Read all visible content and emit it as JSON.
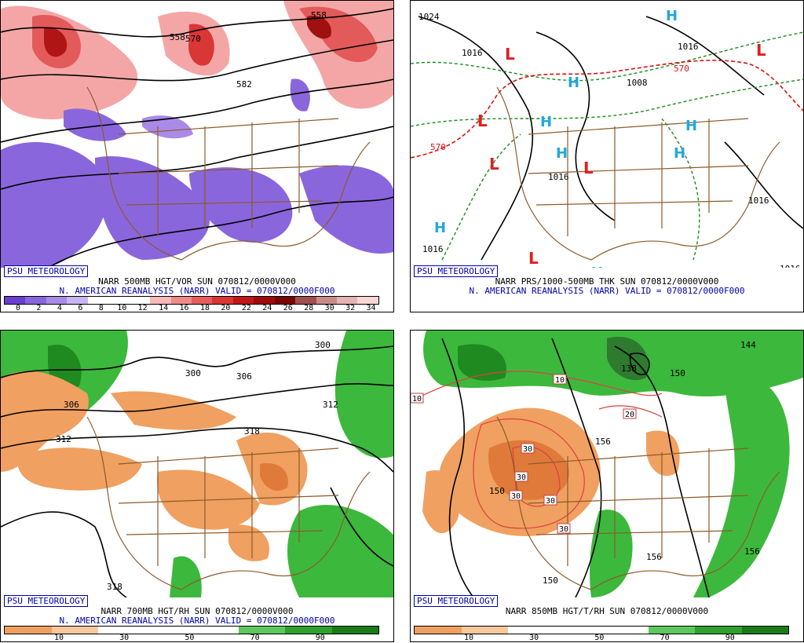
{
  "panels": [
    {
      "id": "vor",
      "badge": "PSU METEOROLOGY",
      "line1": "NARR 500MB HGT/VOR SUN 070812/0000V000",
      "line2": "N. AMERICAN REANALYSIS (NARR) VALID = 070812/0000F000",
      "colorbar": {
        "ticks": [
          "0",
          "2",
          "4",
          "6",
          "8",
          "10",
          "12",
          "14",
          "16",
          "18",
          "20",
          "22",
          "24",
          "26",
          "28",
          "30",
          "32",
          "34"
        ],
        "colors": [
          "#6a3fd0",
          "#8a66dc",
          "#a98ae6",
          "#c8b4f0",
          "#ffffff",
          "#ffffff",
          "#ffffff",
          "#f7b9b9",
          "#f08a8a",
          "#e85d5d",
          "#d93636",
          "#c01818",
          "#9e0b0b",
          "#7a0505",
          "#a05050",
          "#c98a8a",
          "#e6b4b4",
          "#f7d6d6"
        ]
      },
      "contour_labels": [
        "558",
        "570",
        "582",
        "552",
        "558"
      ]
    },
    {
      "id": "prs",
      "badge": "PSU METEOROLOGY",
      "line1": "NARR PRS/1000-500MB THK SUN 070812/0000V000",
      "line2": "N. AMERICAN REANALYSIS (NARR) VALID = 070812/0000F000",
      "contour_labels": [
        "1024",
        "1016",
        "1008",
        "1016",
        "1016",
        "1016",
        "1016",
        "1016",
        "1008",
        "570",
        "570",
        "1016"
      ],
      "symbols": {
        "high": "H",
        "low": "L"
      }
    },
    {
      "id": "rh700",
      "badge": "PSU METEOROLOGY",
      "line1": "NARR 700MB HGT/RH SUN 070812/0000V000",
      "line2": "N. AMERICAN REANALYSIS (NARR) VALID = 070812/0000F000",
      "colorbar": {
        "ticks": [
          "10",
          "30",
          "50",
          "70",
          "90"
        ],
        "colors": [
          "#f0a060",
          "#f8c89c",
          "#ffffff",
          "#ffffff",
          "#ffffff",
          "#5cc85c",
          "#2ea02e",
          "#1a7a1a"
        ]
      },
      "contour_labels": [
        "300",
        "300",
        "306",
        "306",
        "312",
        "312",
        "318",
        "318"
      ]
    },
    {
      "id": "rh850",
      "badge": "PSU METEOROLOGY",
      "line1": "NARR 850MB HGT/T/RH SUN 070812/0000V000",
      "colorbar": {
        "ticks": [
          "10",
          "30",
          "50",
          "70",
          "90"
        ],
        "colors": [
          "#f0a060",
          "#f8c89c",
          "#ffffff",
          "#ffffff",
          "#ffffff",
          "#5cc85c",
          "#2ea02e",
          "#1a7a1a"
        ]
      },
      "contour_labels": [
        "144",
        "138",
        "150",
        "156",
        "150",
        "156",
        "150",
        "156"
      ],
      "temp_labels": [
        "10",
        "10",
        "20",
        "30",
        "30",
        "30",
        "30",
        "30"
      ]
    }
  ]
}
